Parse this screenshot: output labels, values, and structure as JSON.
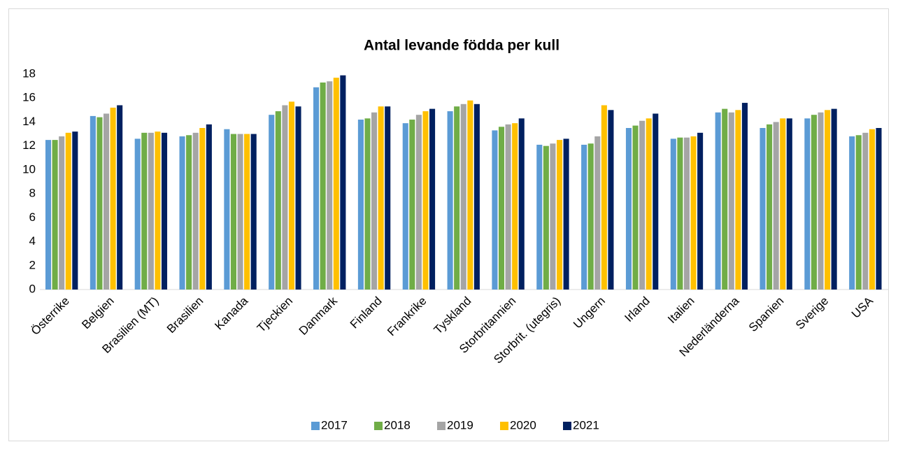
{
  "chart_data": {
    "type": "bar",
    "title": "Antal levande födda per kull",
    "categories": [
      "Österrike",
      "Belgien",
      "Brasilien (MT)",
      "Brasilien",
      "Kanada",
      "Tjeckien",
      "Danmark",
      "Finland",
      "Frankrike",
      "Tyskland",
      "Storbritannien",
      "Storbrit. (utegris)",
      "Ungern",
      "Irland",
      "Italien",
      "Nederländerna",
      "Spanien",
      "Sverige",
      "USA"
    ],
    "series": [
      {
        "name": "2017",
        "color": "#5b9bd5",
        "values": [
          12.5,
          14.5,
          12.6,
          12.8,
          13.4,
          14.6,
          16.9,
          14.2,
          13.9,
          14.9,
          13.3,
          12.1,
          12.1,
          13.5,
          12.6,
          14.8,
          13.5,
          14.3,
          12.8
        ]
      },
      {
        "name": "2018",
        "color": "#70ad47",
        "values": [
          12.5,
          14.4,
          13.1,
          12.9,
          13.0,
          14.9,
          17.3,
          14.3,
          14.2,
          15.3,
          13.6,
          12.0,
          12.2,
          13.7,
          12.7,
          15.1,
          13.8,
          14.6,
          12.9
        ]
      },
      {
        "name": "2019",
        "color": "#a5a5a5",
        "values": [
          12.8,
          14.7,
          13.1,
          13.1,
          13.0,
          15.4,
          17.4,
          14.8,
          14.6,
          15.5,
          13.8,
          12.2,
          12.8,
          14.1,
          12.7,
          14.8,
          14.0,
          14.8,
          13.1
        ]
      },
      {
        "name": "2020",
        "color": "#ffc000",
        "values": [
          13.1,
          15.2,
          13.2,
          13.5,
          13.0,
          15.7,
          17.7,
          15.3,
          14.9,
          15.8,
          13.9,
          12.5,
          15.4,
          14.3,
          12.8,
          15.0,
          14.3,
          15.0,
          13.4
        ]
      },
      {
        "name": "2021",
        "color": "#002060",
        "values": [
          13.2,
          15.4,
          13.1,
          13.8,
          13.0,
          15.3,
          17.9,
          15.3,
          15.1,
          15.5,
          14.3,
          12.6,
          15.0,
          14.7,
          13.1,
          15.6,
          14.3,
          15.1,
          13.5
        ]
      }
    ],
    "ylim": [
      0,
      18
    ],
    "yticks": [
      0,
      2,
      4,
      6,
      8,
      10,
      12,
      14,
      16,
      18
    ],
    "grid": false,
    "legend": "bottom"
  }
}
